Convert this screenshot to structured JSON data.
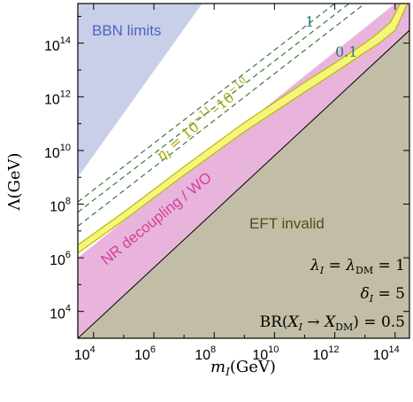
{
  "chart_data": {
    "type": "area",
    "x_scale": "log",
    "y_scale": "log",
    "xlim": [
      3000.0,
      300000000000000.0
    ],
    "ylim": [
      1000.0,
      3000000000000000.0
    ],
    "xlabel": "m_I(GeV)",
    "ylabel": "Λ(GeV)",
    "x_ticks": [
      {
        "value": 10000.0,
        "base": "10",
        "exp": "4"
      },
      {
        "value": 1000000.0,
        "base": "10",
        "exp": "6"
      },
      {
        "value": 100000000.0,
        "base": "10",
        "exp": "8"
      },
      {
        "value": 10000000000.0,
        "base": "10",
        "exp": "10"
      },
      {
        "value": 1000000000000.0,
        "base": "10",
        "exp": "12"
      },
      {
        "value": 100000000000000.0,
        "base": "10",
        "exp": "14"
      }
    ],
    "y_ticks": [
      {
        "value": 10000.0,
        "base": "10",
        "exp": "4"
      },
      {
        "value": 1000000.0,
        "base": "10",
        "exp": "6"
      },
      {
        "value": 100000000.0,
        "base": "10",
        "exp": "8"
      },
      {
        "value": 10000000000.0,
        "base": "10",
        "exp": "10"
      },
      {
        "value": 1000000000000.0,
        "base": "10",
        "exp": "12"
      },
      {
        "value": 100000000000000.0,
        "base": "10",
        "exp": "14"
      }
    ],
    "regions": [
      {
        "name": "BBN limits",
        "label": "BBN limits",
        "color": "#c9cfe8",
        "label_color": "#4f62c2",
        "polygon": [
          [
            3000.0,
            1000000000.0
          ],
          [
            3000.0,
            3000000000000000.0
          ],
          [
            40000000.0,
            3000000000000000.0
          ]
        ]
      },
      {
        "name": "NR decoupling / WO",
        "label": "NR decoupling / WO",
        "color": "#e8b4dc",
        "label_color": "#d4409c",
        "polygon": [
          [
            3000.0,
            1000000.0
          ],
          [
            3000.0,
            1000.0
          ],
          [
            300000000000000.0,
            300000000000000.0
          ],
          [
            300000000000000.0,
            3000000000000000.0
          ],
          [
            100000000000000.0,
            3000000000000000.0
          ]
        ]
      },
      {
        "name": "EFT invalid",
        "label": "EFT invalid",
        "color": "#c2bda6",
        "label_color": "#5a4a1a",
        "polygon": [
          [
            3000.0,
            1000.0
          ],
          [
            300000000000000.0,
            1000.0
          ],
          [
            300000000000000.0,
            300000000000000.0
          ]
        ]
      }
    ],
    "band": {
      "name": "eta_I = 1e-11 to 1e-10",
      "color": "#f5f57a",
      "edge_color": "#b8b800",
      "lower": [
        [
          3000.0,
          1500000.0
        ],
        [
          100000.0,
          25000000.0
        ],
        [
          10000000.0,
          1200000000.0
        ],
        [
          1000000000.0,
          50000000000.0
        ],
        [
          100000000000.0,
          1500000000000.0
        ],
        [
          1000000000000.0,
          8000000000000.0
        ],
        [
          10000000000000.0,
          45000000000000.0
        ],
        [
          30000000000000.0,
          100000000000000.0
        ],
        [
          100000000000000.0,
          300000000000000.0
        ],
        [
          260000000000000.0,
          3000000000000000.0
        ]
      ],
      "upper": [
        [
          3000.0,
          3000000.0
        ],
        [
          100000.0,
          50000000.0
        ],
        [
          10000000.0,
          2500000000.0
        ],
        [
          1000000000.0,
          110000000000.0
        ],
        [
          100000000000.0,
          3500000000000.0
        ],
        [
          1000000000000.0,
          18000000000000.0
        ],
        [
          10000000000000.0,
          100000000000000.0
        ],
        [
          25000000000000.0,
          220000000000000.0
        ],
        [
          70000000000000.0,
          600000000000000.0
        ],
        [
          150000000000000.0,
          3000000000000000.0
        ]
      ]
    },
    "dashed_lines": [
      {
        "label": "1",
        "color": "#2f6b2f",
        "points": [
          [
            3000.0,
            120000000.0
          ],
          [
            1000000000000.0,
            3000000000000000.0
          ]
        ]
      },
      {
        "label": "",
        "color": "#2f6b2f",
        "points": [
          [
            3000.0,
            50000000.0
          ],
          [
            3000000000000.0,
            3000000000000000.0
          ]
        ]
      },
      {
        "label": "0.1",
        "color": "#2f6b2f",
        "points": [
          [
            3000.0,
            15000000.0
          ],
          [
            10000000000000.0,
            3000000000000000.0
          ]
        ]
      }
    ],
    "diagonal": {
      "color": "#000000",
      "points": [
        [
          3000.0,
          1000.0
        ],
        [
          300000000000000.0,
          300000000000000.0
        ]
      ]
    }
  },
  "annotations": {
    "bbn": "BBN limits",
    "nr": "NR decoupling / WO",
    "eft": "EFT invalid",
    "eta": "η_I = 10^−11–10^−10",
    "line_1": "1",
    "line_01": "0.1",
    "lambda_eq": "λ_I = λ_DM = 1",
    "delta_eq": "δ_I = 5",
    "br_eq": "BR(X_I → X_DM) = 0.5"
  },
  "colors": {
    "eta_label": "#a8a800",
    "line_label": "#2b7a7a"
  }
}
